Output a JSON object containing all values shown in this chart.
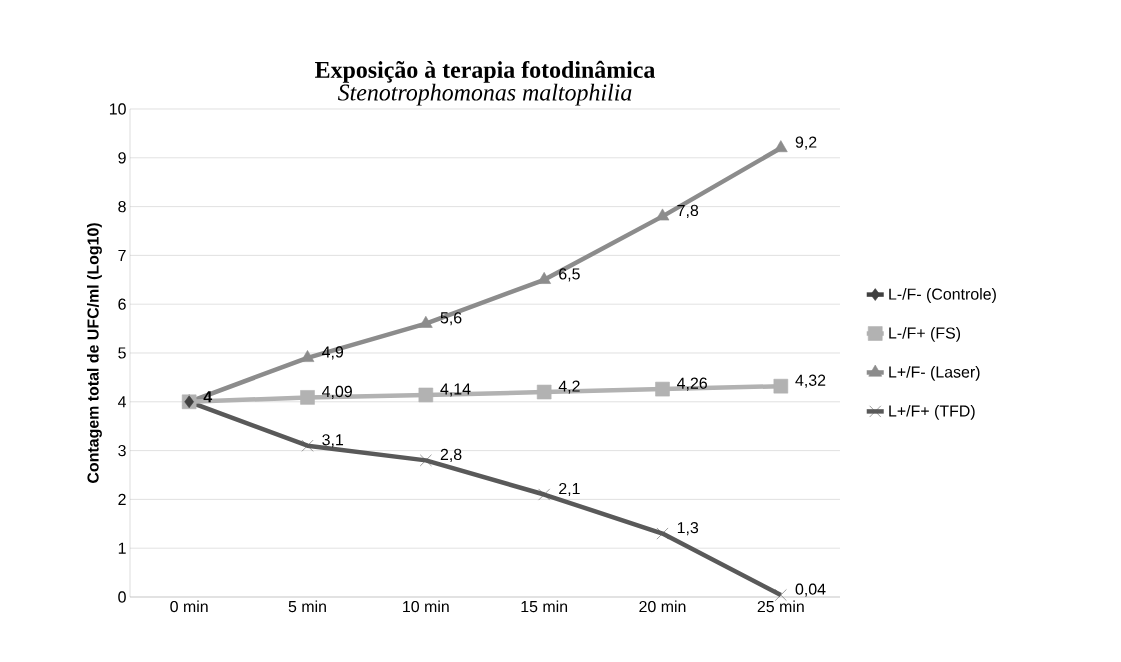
{
  "chart_data": {
    "type": "line",
    "title": "Exposição à terapia fotodinâmica",
    "subtitle": "Stenotrophomonas maltophilia",
    "ylabel": "Contagem total de UFC/ml (Log10)",
    "categories": [
      "0 min",
      "5 min",
      "10 min",
      "15 min",
      "20 min",
      "25 min"
    ],
    "series": [
      {
        "name": "L-/F- (Controle)",
        "color": "#404040",
        "marker": "diamond",
        "values": [
          4,
          null,
          null,
          null,
          null,
          null
        ],
        "value_labels": [
          "4",
          null,
          null,
          null,
          null,
          null
        ]
      },
      {
        "name": "L-/F+ (FS)",
        "color": "#b2b2b2",
        "marker": "square",
        "values": [
          4,
          4.09,
          4.14,
          4.2,
          4.26,
          4.32
        ],
        "value_labels": [
          null,
          "4,09",
          "4,14",
          "4,2",
          "4,26",
          "4,32"
        ]
      },
      {
        "name": "L+/F- (Laser)",
        "color": "#8c8c8c",
        "marker": "triangle",
        "values": [
          4,
          4.9,
          5.6,
          6.5,
          7.8,
          9.2
        ],
        "value_labels": [
          null,
          "4,9",
          "5,6",
          "6,5",
          "7,8",
          "9,2"
        ]
      },
      {
        "name": "L+/F+ (TFD)",
        "color": "#595959",
        "marker": "cross",
        "values": [
          4,
          3.1,
          2.8,
          2.1,
          1.3,
          0.04
        ],
        "value_labels": [
          null,
          "3,1",
          "2,8",
          "2,1",
          "1,3",
          "0,04"
        ]
      }
    ],
    "ylim": [
      0,
      10
    ],
    "yticks": [
      0,
      1,
      2,
      3,
      4,
      5,
      6,
      7,
      8,
      9,
      10
    ],
    "grid": "y",
    "legend": "right"
  }
}
